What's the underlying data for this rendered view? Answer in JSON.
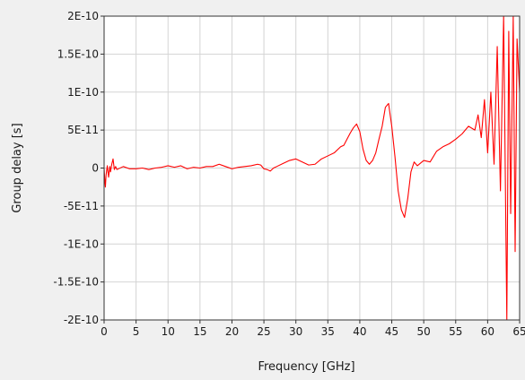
{
  "chart_data": {
    "type": "line",
    "xlabel": "Frequency [GHz]",
    "ylabel": "Group delay [s]",
    "xlim": [
      0,
      65
    ],
    "ylim": [
      -2e-10,
      2e-10
    ],
    "grid": true,
    "colors": {
      "series": "#ff0000",
      "grid": "#d4d4d4",
      "plot_bg": "#ffffff",
      "page_bg": "#f0f0f0",
      "axis": "#333333"
    },
    "x_ticks": [
      {
        "value": 0,
        "label": "0"
      },
      {
        "value": 5,
        "label": "5"
      },
      {
        "value": 10,
        "label": "10"
      },
      {
        "value": 15,
        "label": "15"
      },
      {
        "value": 20,
        "label": "20"
      },
      {
        "value": 25,
        "label": "25"
      },
      {
        "value": 30,
        "label": "30"
      },
      {
        "value": 35,
        "label": "35"
      },
      {
        "value": 40,
        "label": "40"
      },
      {
        "value": 45,
        "label": "45"
      },
      {
        "value": 50,
        "label": "50"
      },
      {
        "value": 55,
        "label": "55"
      },
      {
        "value": 60,
        "label": "60"
      },
      {
        "value": 65,
        "label": "65"
      }
    ],
    "y_ticks": [
      {
        "value": 2e-10,
        "label": "2E-10"
      },
      {
        "value": 1.5e-10,
        "label": "1.5E-10"
      },
      {
        "value": 1e-10,
        "label": "1E-10"
      },
      {
        "value": 5e-11,
        "label": "5E-11"
      },
      {
        "value": 0,
        "label": "0"
      },
      {
        "value": -5e-11,
        "label": "-5E-11"
      },
      {
        "value": -1e-10,
        "label": "-1E-10"
      },
      {
        "value": -1.5e-10,
        "label": "-1.5E-10"
      },
      {
        "value": -2e-10,
        "label": "-2E-10"
      }
    ],
    "series": [
      {
        "values": [
          [
            0.0,
            0
          ],
          [
            0.1,
            -1.5e-11
          ],
          [
            0.2,
            -2.5e-11
          ],
          [
            0.3,
            -1e-11
          ],
          [
            0.5,
            3e-12
          ],
          [
            0.7,
            -1.2e-11
          ],
          [
            0.9,
            2e-12
          ],
          [
            1.0,
            -5e-12
          ],
          [
            1.2,
            5e-12
          ],
          [
            1.4,
            1.2e-11
          ],
          [
            1.6,
            -2e-12
          ],
          [
            1.8,
            2e-12
          ],
          [
            2.0,
            -2e-12
          ],
          [
            3.0,
            2e-12
          ],
          [
            4.0,
            -1e-12
          ],
          [
            5.0,
            -1e-12
          ],
          [
            6.0,
            0
          ],
          [
            7.0,
            -2e-12
          ],
          [
            8.0,
            0
          ],
          [
            9.0,
            1e-12
          ],
          [
            10.0,
            3e-12
          ],
          [
            11.0,
            1e-12
          ],
          [
            12.0,
            3e-12
          ],
          [
            13.0,
            -1e-12
          ],
          [
            14.0,
            1e-12
          ],
          [
            15.0,
            0
          ],
          [
            16.0,
            2e-12
          ],
          [
            17.0,
            2e-12
          ],
          [
            18.0,
            5e-12
          ],
          [
            19.0,
            2e-12
          ],
          [
            20.0,
            -1e-12
          ],
          [
            21.0,
            1e-12
          ],
          [
            22.0,
            2e-12
          ],
          [
            23.0,
            3e-12
          ],
          [
            24.0,
            5e-12
          ],
          [
            24.5,
            4e-12
          ],
          [
            25.0,
            -1e-12
          ],
          [
            25.5,
            -2e-12
          ],
          [
            26.0,
            -4e-12
          ],
          [
            26.5,
            0
          ],
          [
            27.0,
            2e-12
          ],
          [
            28.0,
            6e-12
          ],
          [
            29.0,
            1e-11
          ],
          [
            30.0,
            1.2e-11
          ],
          [
            31.0,
            8e-12
          ],
          [
            32.0,
            4e-12
          ],
          [
            33.0,
            5e-12
          ],
          [
            34.0,
            1.2e-11
          ],
          [
            35.0,
            1.6e-11
          ],
          [
            36.0,
            2e-11
          ],
          [
            37.0,
            2.8e-11
          ],
          [
            37.5,
            3e-11
          ],
          [
            38.0,
            3.8e-11
          ],
          [
            38.5,
            4.6e-11
          ],
          [
            39.0,
            5.3e-11
          ],
          [
            39.5,
            5.8e-11
          ],
          [
            40.0,
            4.8e-11
          ],
          [
            40.5,
            2.5e-11
          ],
          [
            41.0,
            1e-11
          ],
          [
            41.5,
            5e-12
          ],
          [
            42.0,
            1e-11
          ],
          [
            42.5,
            2e-11
          ],
          [
            43.0,
            3.8e-11
          ],
          [
            43.5,
            5.5e-11
          ],
          [
            44.0,
            8e-11
          ],
          [
            44.5,
            8.5e-11
          ],
          [
            45.0,
            5.5e-11
          ],
          [
            45.5,
            1.5e-11
          ],
          [
            46.0,
            -3e-11
          ],
          [
            46.5,
            -5.5e-11
          ],
          [
            47.0,
            -6.5e-11
          ],
          [
            47.5,
            -4e-11
          ],
          [
            48.0,
            -5e-12
          ],
          [
            48.5,
            8e-12
          ],
          [
            49.0,
            3e-12
          ],
          [
            50.0,
            1e-11
          ],
          [
            51.0,
            8e-12
          ],
          [
            52.0,
            2.2e-11
          ],
          [
            53.0,
            2.8e-11
          ],
          [
            54.0,
            3.2e-11
          ],
          [
            55.0,
            3.8e-11
          ],
          [
            56.0,
            4.5e-11
          ],
          [
            57.0,
            5.5e-11
          ],
          [
            58.0,
            5e-11
          ],
          [
            58.5,
            7e-11
          ],
          [
            59.0,
            4e-11
          ],
          [
            59.5,
            9e-11
          ],
          [
            60.0,
            2e-11
          ],
          [
            60.5,
            1e-10
          ],
          [
            61.0,
            5e-12
          ],
          [
            61.5,
            1.6e-10
          ],
          [
            62.0,
            -3e-11
          ],
          [
            62.5,
            2e-10
          ],
          [
            63.0,
            -2e-10
          ],
          [
            63.3,
            1.8e-10
          ],
          [
            63.6,
            -6e-11
          ],
          [
            64.0,
            2e-10
          ],
          [
            64.3,
            -1.1e-10
          ],
          [
            64.6,
            1.7e-10
          ],
          [
            65.0,
            1e-10
          ]
        ]
      }
    ]
  }
}
